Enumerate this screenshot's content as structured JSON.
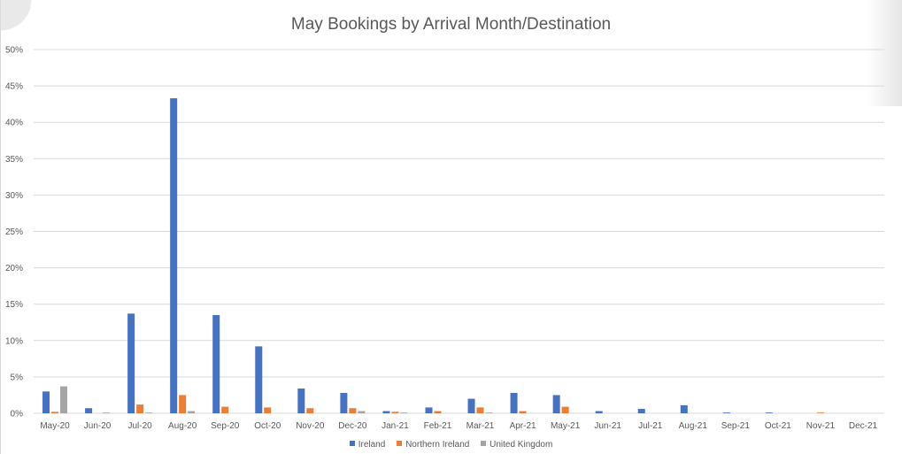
{
  "colors": {
    "ireland": "#4472c4",
    "northern_ireland": "#ed7d31",
    "uk": "#a5a5a5",
    "grid": "#d9d9d9",
    "axis_text": "#595959"
  },
  "chart_data": {
    "type": "bar",
    "title": "May Bookings by Arrival Month/Destination",
    "xlabel": "",
    "ylabel": "",
    "ylim": [
      0,
      50
    ],
    "y_ticks": [
      "0%",
      "5%",
      "10%",
      "15%",
      "20%",
      "25%",
      "30%",
      "35%",
      "40%",
      "45%",
      "50%"
    ],
    "grid": true,
    "legend_position": "bottom",
    "categories": [
      "May-20",
      "Jun-20",
      "Jul-20",
      "Aug-20",
      "Sep-20",
      "Oct-20",
      "Nov-20",
      "Dec-20",
      "Jan-21",
      "Feb-21",
      "Mar-21",
      "Apr-21",
      "May-21",
      "Jun-21",
      "Jul-21",
      "Aug-21",
      "Sep-21",
      "Oct-21",
      "Nov-21",
      "Dec-21"
    ],
    "series": [
      {
        "name": "Ireland",
        "values": [
          3.0,
          0.7,
          13.7,
          43.3,
          13.5,
          9.2,
          3.4,
          2.8,
          0.3,
          0.8,
          2.0,
          2.8,
          2.5,
          0.3,
          0.6,
          1.1,
          0.1,
          0.1,
          0.0,
          0.0
        ]
      },
      {
        "name": "Northern Ireland",
        "values": [
          0.2,
          0.0,
          1.2,
          2.5,
          0.9,
          0.8,
          0.7,
          0.7,
          0.2,
          0.3,
          0.8,
          0.3,
          0.9,
          0.0,
          0.0,
          0.0,
          0.0,
          0.0,
          0.1,
          0.0
        ]
      },
      {
        "name": "United Kingdom",
        "values": [
          3.7,
          0.1,
          0.1,
          0.3,
          0.0,
          0.0,
          0.0,
          0.3,
          0.1,
          0.0,
          0.1,
          0.0,
          0.0,
          0.0,
          0.0,
          0.0,
          0.0,
          0.0,
          0.0,
          0.0
        ]
      }
    ]
  }
}
